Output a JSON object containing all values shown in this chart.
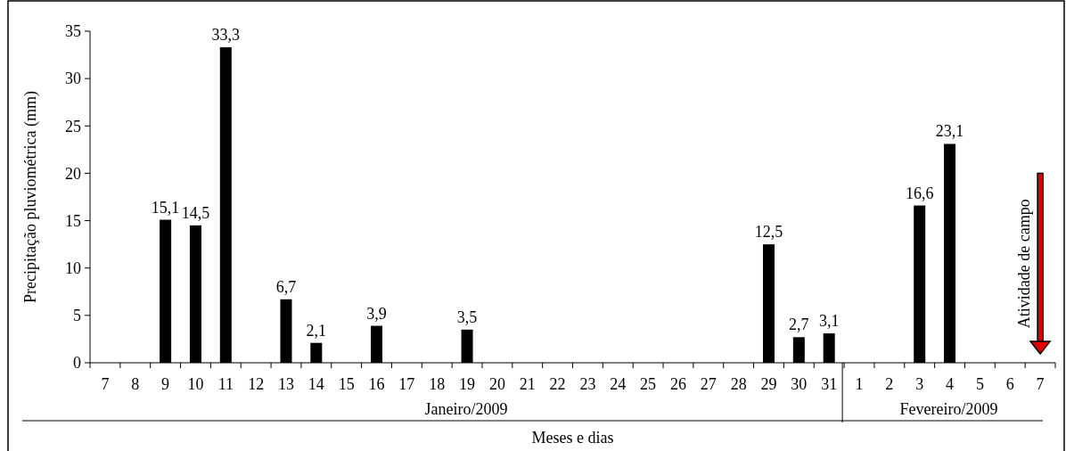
{
  "chart_data": {
    "type": "bar",
    "xlabel": "Meses e dias",
    "ylabel": "Precipitação pluviométrica (mm)",
    "categories": [
      "7",
      "8",
      "9",
      "10",
      "11",
      "12",
      "13",
      "14",
      "15",
      "16",
      "17",
      "18",
      "19",
      "20",
      "21",
      "22",
      "23",
      "24",
      "25",
      "26",
      "27",
      "28",
      "29",
      "30",
      "31",
      "1",
      "2",
      "3",
      "4",
      "5",
      "6",
      "7"
    ],
    "values": [
      null,
      null,
      15.1,
      14.5,
      33.3,
      null,
      6.7,
      2.1,
      null,
      3.9,
      null,
      null,
      3.5,
      null,
      null,
      null,
      null,
      null,
      null,
      null,
      null,
      null,
      12.5,
      2.7,
      3.1,
      null,
      null,
      16.6,
      23.1,
      null,
      null,
      null
    ],
    "value_labels": [
      null,
      null,
      "15,1",
      "14,5",
      "33,3",
      null,
      "6,7",
      "2,1",
      null,
      "3,9",
      null,
      null,
      "3,5",
      null,
      null,
      null,
      null,
      null,
      null,
      null,
      null,
      null,
      "12,5",
      "2,7",
      "3,1",
      null,
      null,
      "16,6",
      "23,1",
      null,
      null,
      null
    ],
    "color": "#000000",
    "ylim": [
      0,
      35
    ],
    "yticks": [
      0,
      5,
      10,
      15,
      20,
      25,
      30,
      35
    ],
    "annotations": [
      "Janeiro/2009",
      "Fevereiro/2009",
      "Atividade de campo"
    ]
  }
}
